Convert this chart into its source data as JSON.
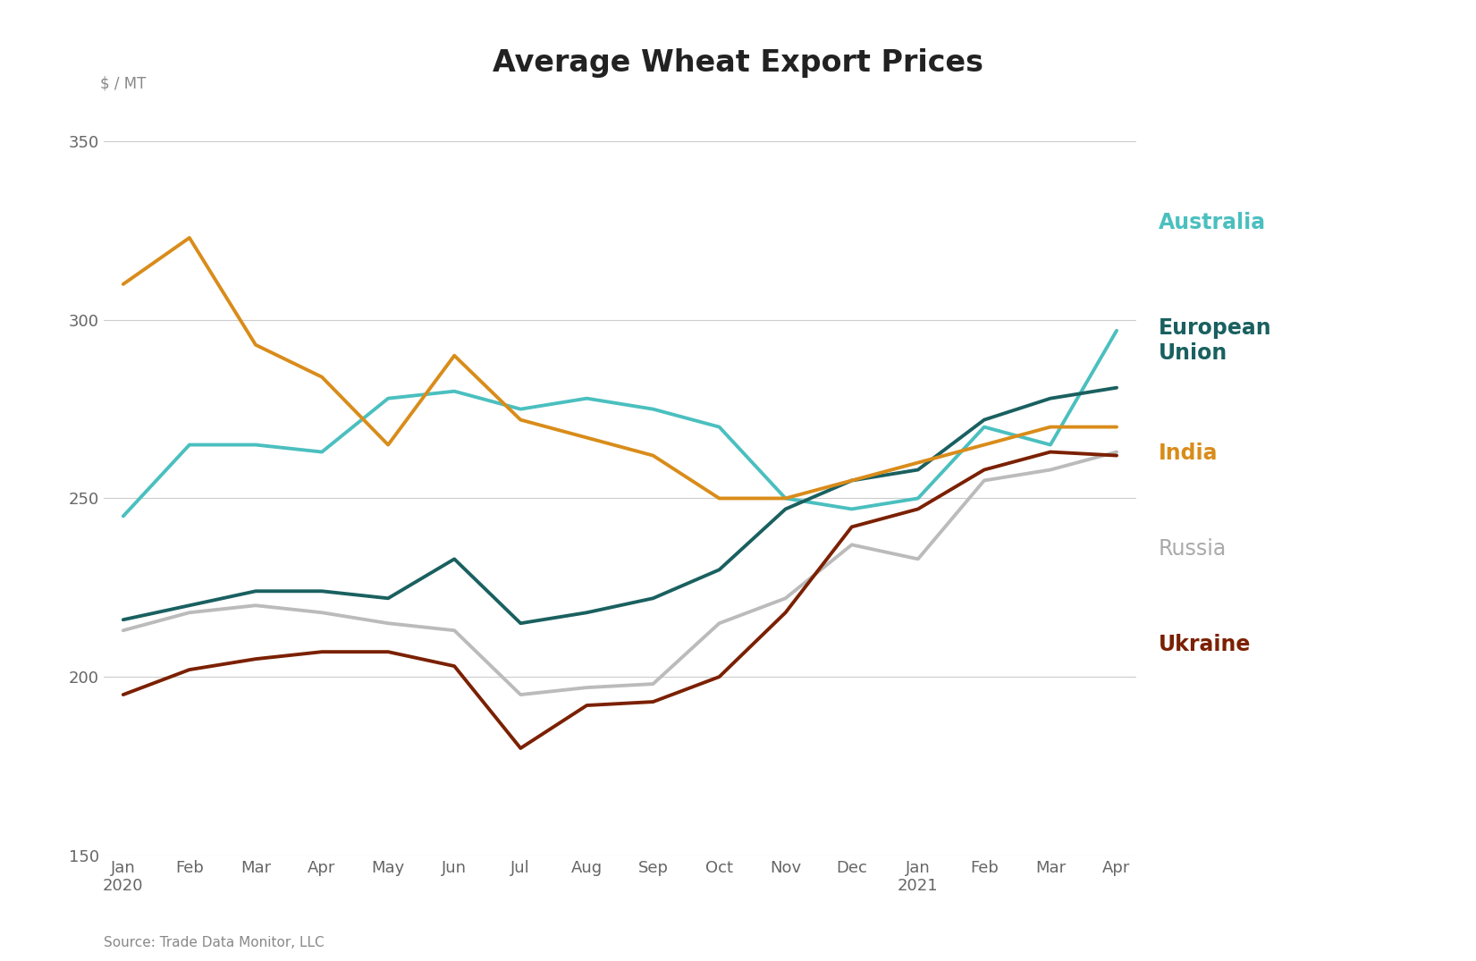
{
  "title": "Average Wheat Export Prices",
  "ylabel": "$ / MT",
  "source": "Source: Trade Data Monitor, LLC",
  "ylim": [
    150,
    360
  ],
  "yticks": [
    150,
    200,
    250,
    300,
    350
  ],
  "months": [
    "Jan\n2020",
    "Feb",
    "Mar",
    "Apr",
    "May",
    "Jun",
    "Jul",
    "Aug",
    "Sep",
    "Oct",
    "Nov",
    "Dec",
    "Jan\n2021",
    "Feb",
    "Mar",
    "Apr"
  ],
  "series": {
    "Australia": {
      "color": "#4BBFBF",
      "data": [
        245,
        265,
        265,
        263,
        278,
        280,
        275,
        278,
        275,
        270,
        250,
        247,
        250,
        270,
        265,
        297
      ]
    },
    "European Union": {
      "color": "#1A6060",
      "data": [
        216,
        220,
        224,
        224,
        222,
        233,
        215,
        218,
        222,
        230,
        247,
        255,
        258,
        272,
        278,
        281
      ]
    },
    "India": {
      "color": "#D98C1A",
      "data": [
        310,
        323,
        293,
        284,
        265,
        290,
        272,
        267,
        262,
        250,
        250,
        255,
        260,
        265,
        270,
        270
      ]
    },
    "Russia": {
      "color": "#BBBBBB",
      "data": [
        213,
        218,
        220,
        218,
        215,
        213,
        195,
        197,
        198,
        215,
        222,
        237,
        233,
        255,
        258,
        263
      ]
    },
    "Ukraine": {
      "color": "#7B2000",
      "data": [
        195,
        202,
        205,
        207,
        207,
        203,
        180,
        192,
        193,
        200,
        218,
        242,
        247,
        258,
        263,
        262
      ]
    }
  },
  "legend": [
    {
      "label": "Australia",
      "color": "#4BBFBF",
      "fontweight": "bold"
    },
    {
      "label": "European\nUnion",
      "color": "#1A6060",
      "fontweight": "bold"
    },
    {
      "label": "India",
      "color": "#D98C1A",
      "fontweight": "bold"
    },
    {
      "label": "Russia",
      "color": "#AAAAAA",
      "fontweight": "normal"
    },
    {
      "label": "Ukraine",
      "color": "#7B2000",
      "fontweight": "bold"
    }
  ],
  "background_color": "#FFFFFF",
  "grid_color": "#CCCCCC",
  "title_fontsize": 24,
  "label_fontsize": 12,
  "tick_fontsize": 13,
  "legend_fontsize": 17,
  "line_width": 2.8
}
